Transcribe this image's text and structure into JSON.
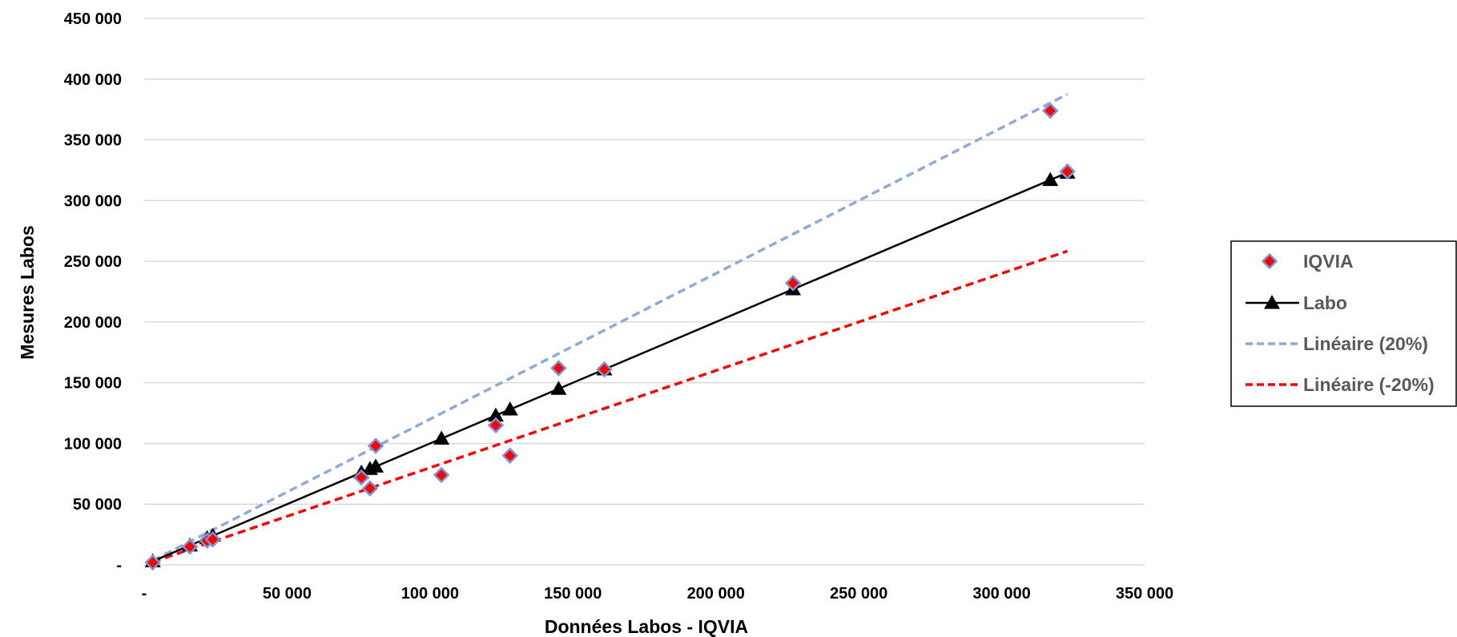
{
  "chart_data": {
    "type": "scatter",
    "title": "",
    "xlabel": "Données Labos - IQVIA",
    "ylabel": "Mesures Labos",
    "xlim": [
      0,
      350000
    ],
    "ylim": [
      0,
      450000
    ],
    "x_ticks": [
      0,
      50000,
      100000,
      150000,
      200000,
      250000,
      300000,
      350000
    ],
    "x_tick_labels": [
      "-",
      "50 000",
      "100 000",
      "150 000",
      "200 000",
      "250 000",
      "300 000",
      "350 000"
    ],
    "y_ticks": [
      0,
      50000,
      100000,
      150000,
      200000,
      250000,
      300000,
      350000,
      400000,
      450000
    ],
    "y_tick_labels": [
      "-",
      "50 000",
      "100 000",
      "150 000",
      "200 000",
      "250 000",
      "300 000",
      "350 000",
      "400 000",
      "450 000"
    ],
    "grid": "horizontal",
    "legend_position": "right",
    "series": [
      {
        "name": "IQVIA",
        "kind": "markers",
        "marker": "diamond",
        "color": "#ff0000",
        "edge_color": "#7b96d4",
        "points": [
          [
            3000,
            2000
          ],
          [
            16000,
            15000
          ],
          [
            22000,
            20000
          ],
          [
            24000,
            21000
          ],
          [
            76000,
            72000
          ],
          [
            79000,
            63000
          ],
          [
            81000,
            98000
          ],
          [
            104000,
            74000
          ],
          [
            123000,
            115000
          ],
          [
            128000,
            90000
          ],
          [
            145000,
            162000
          ],
          [
            161000,
            161000
          ],
          [
            227000,
            232000
          ],
          [
            317000,
            374000
          ],
          [
            323000,
            324000
          ]
        ]
      },
      {
        "name": "Labo",
        "kind": "line-markers",
        "marker": "triangle",
        "color": "#000000",
        "points": [
          [
            3000,
            3000
          ],
          [
            16000,
            16000
          ],
          [
            22000,
            22000
          ],
          [
            24000,
            24000
          ],
          [
            76000,
            76000
          ],
          [
            79000,
            79000
          ],
          [
            81000,
            81000
          ],
          [
            104000,
            104000
          ],
          [
            123000,
            123000
          ],
          [
            128000,
            128000
          ],
          [
            145000,
            145000
          ],
          [
            161000,
            161000
          ],
          [
            227000,
            227000
          ],
          [
            317000,
            317000
          ],
          [
            323000,
            323000
          ]
        ]
      },
      {
        "name": "Linéaire (20%)",
        "kind": "dashed-line",
        "color": "#8faadc",
        "points": [
          [
            3000,
            3600
          ],
          [
            323000,
            387600
          ]
        ]
      },
      {
        "name": "Linéaire (-20%)",
        "kind": "dashed-line",
        "color": "#ff0000",
        "points": [
          [
            3000,
            2400
          ],
          [
            323000,
            258400
          ]
        ]
      }
    ]
  }
}
